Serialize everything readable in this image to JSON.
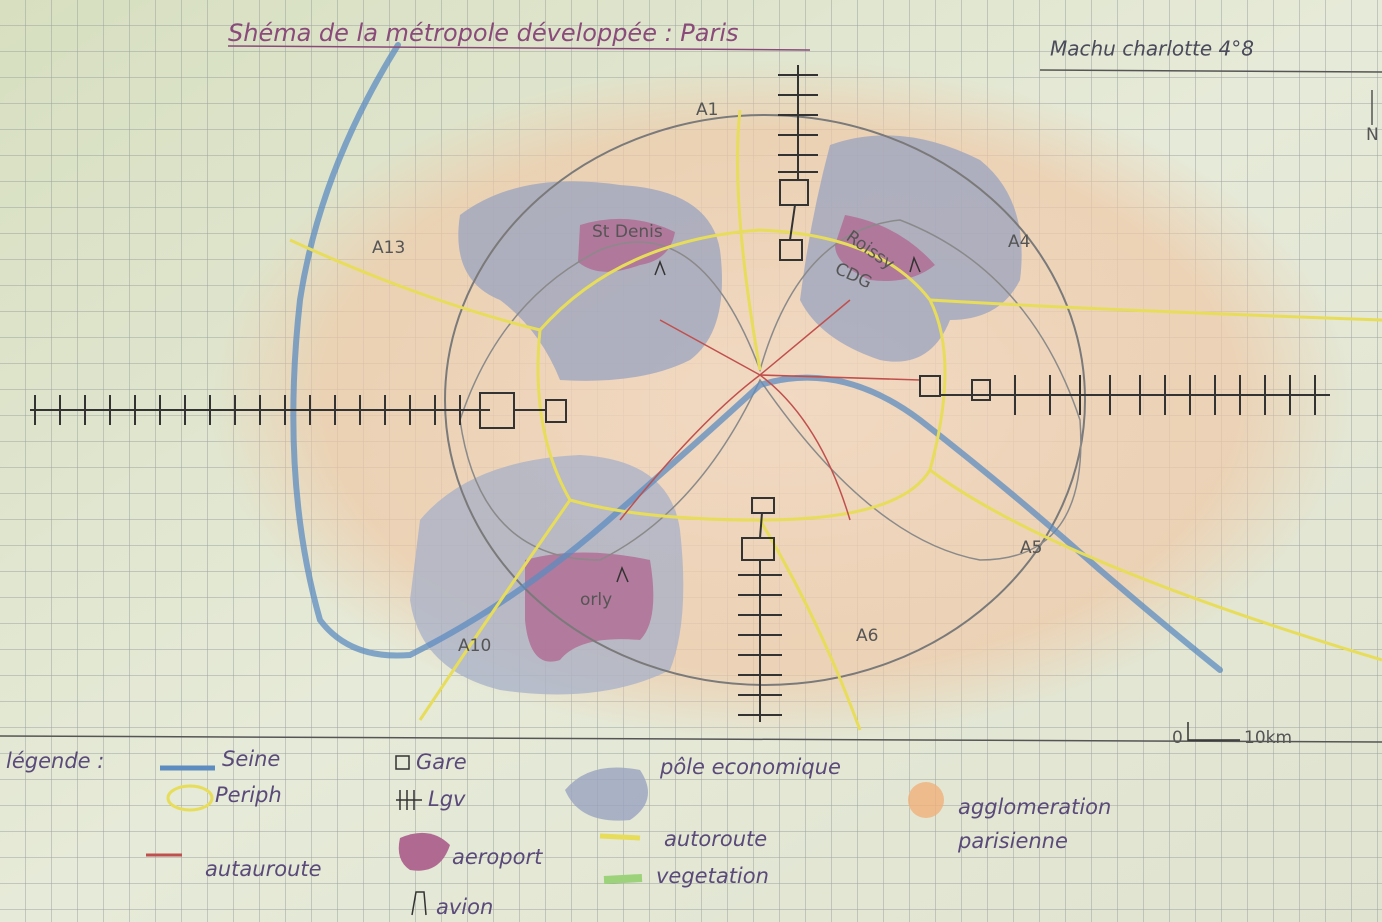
{
  "header": {
    "title": "Shéma de la métropole développée : Paris",
    "author": "Machu charlotte 4°8"
  },
  "map": {
    "compass": "N",
    "labels": [
      "A1",
      "A13",
      "St Denis",
      "Roissy",
      "CDG",
      "A4",
      "A5",
      "A6",
      "A10",
      "orly"
    ],
    "scale": {
      "start": "0",
      "end": "10km"
    }
  },
  "legend": {
    "title": "légende :",
    "items": [
      "Seine",
      "Periph",
      "autauroute",
      "Gare",
      "Lgv",
      "aeroport",
      "avion",
      "pôle economique",
      "autoroute",
      "vegetation",
      [
        "agglomeration",
        "parisienne"
      ]
    ]
  }
}
